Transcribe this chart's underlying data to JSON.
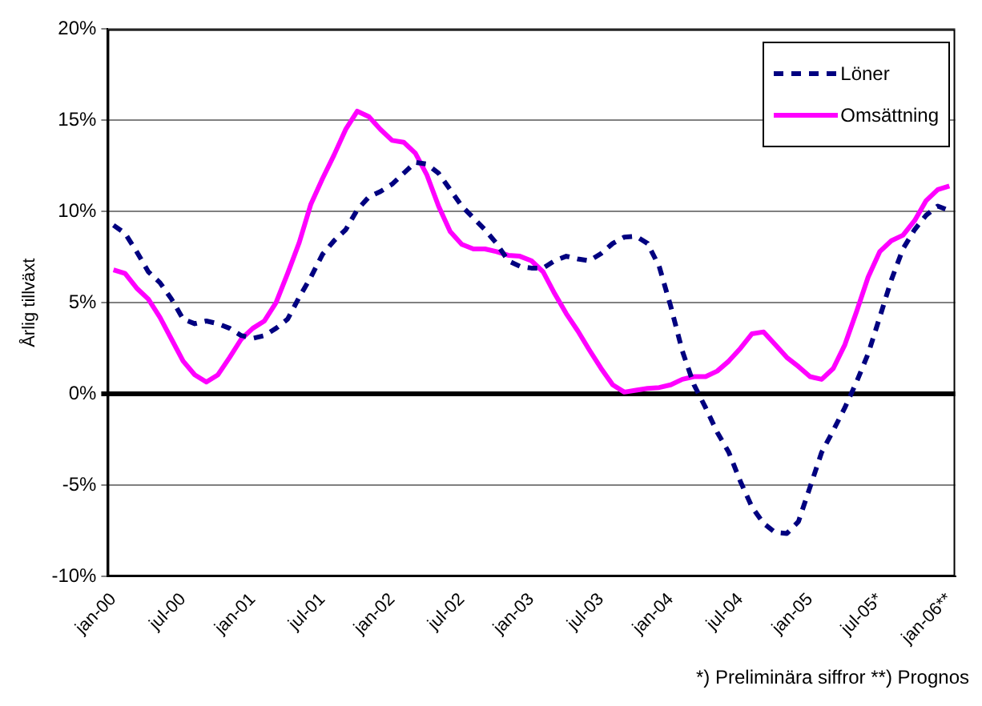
{
  "chart_data": {
    "type": "line",
    "ylabel": "Årlig tillväxt",
    "categories": [
      "jan-00",
      null,
      null,
      null,
      null,
      null,
      "jul-00",
      null,
      null,
      null,
      null,
      null,
      "jan-01",
      null,
      null,
      null,
      null,
      null,
      "jul-01",
      null,
      null,
      null,
      null,
      null,
      "jan-02",
      null,
      null,
      null,
      null,
      null,
      "jul-02",
      null,
      null,
      null,
      null,
      null,
      "jan-03",
      null,
      null,
      null,
      null,
      null,
      "jul-03",
      null,
      null,
      null,
      null,
      null,
      "jan-04",
      null,
      null,
      null,
      null,
      null,
      "jul-04",
      null,
      null,
      null,
      null,
      null,
      "jan-05",
      null,
      null,
      null,
      null,
      null,
      "jul-05*",
      null,
      null,
      null,
      null,
      null,
      "jan-06**"
    ],
    "series": [
      {
        "name": "Löner",
        "color": "#000080",
        "line_style": "dashed",
        "values": [
          9.25,
          8.8,
          7.8,
          6.7,
          6.1,
          5.2,
          4.1,
          3.85,
          4.0,
          3.85,
          3.6,
          3.2,
          3.05,
          3.2,
          3.6,
          4.1,
          5.3,
          6.4,
          7.65,
          8.4,
          9.0,
          10.1,
          10.8,
          11.1,
          11.5,
          12.1,
          12.7,
          12.6,
          12.1,
          11.2,
          10.3,
          9.65,
          9.0,
          8.25,
          7.3,
          7.0,
          6.9,
          6.9,
          7.3,
          7.55,
          7.4,
          7.3,
          7.7,
          8.25,
          8.6,
          8.65,
          8.25,
          7.0,
          4.8,
          2.35,
          0.5,
          -0.75,
          -2.1,
          -3.2,
          -4.8,
          -6.2,
          -7.1,
          -7.6,
          -7.65,
          -7.0,
          -5.1,
          -3.2,
          -2.0,
          -0.75,
          0.65,
          2.2,
          4.2,
          6.25,
          7.95,
          9.0,
          9.8,
          10.3,
          10.05
        ]
      },
      {
        "name": "Omsättning",
        "color": "#ff00ff",
        "line_style": "solid",
        "values": [
          6.8,
          6.6,
          5.8,
          5.2,
          4.2,
          3.0,
          1.8,
          1.05,
          0.65,
          1.05,
          2.0,
          3.0,
          3.6,
          4.0,
          5.0,
          6.6,
          8.3,
          10.4,
          11.8,
          13.1,
          14.5,
          15.5,
          15.2,
          14.5,
          13.9,
          13.8,
          13.2,
          12.0,
          10.3,
          8.9,
          8.2,
          7.95,
          7.95,
          7.8,
          7.6,
          7.55,
          7.3,
          6.7,
          5.5,
          4.4,
          3.45,
          2.4,
          1.4,
          0.5,
          0.1,
          0.2,
          0.3,
          0.35,
          0.5,
          0.8,
          0.95,
          0.95,
          1.25,
          1.8,
          2.5,
          3.3,
          3.4,
          2.7,
          2.0,
          1.5,
          0.95,
          0.8,
          1.4,
          2.7,
          4.5,
          6.4,
          7.8,
          8.4,
          8.7,
          9.5,
          10.6,
          11.2,
          11.4
        ]
      }
    ],
    "ylim": [
      -10,
      20
    ],
    "yticks": [
      {
        "value": -10,
        "label": "-10%"
      },
      {
        "value": -5,
        "label": "-5%"
      },
      {
        "value": 0,
        "label": "0%"
      },
      {
        "value": 5,
        "label": "5%"
      },
      {
        "value": 10,
        "label": "10%"
      },
      {
        "value": 15,
        "label": "15%"
      },
      {
        "value": 20,
        "label": "20%"
      }
    ],
    "grid": "y",
    "legend": "top right",
    "marker": "none",
    "annotations": [
      "*) Preliminära siffror  **) Prognos"
    ]
  }
}
